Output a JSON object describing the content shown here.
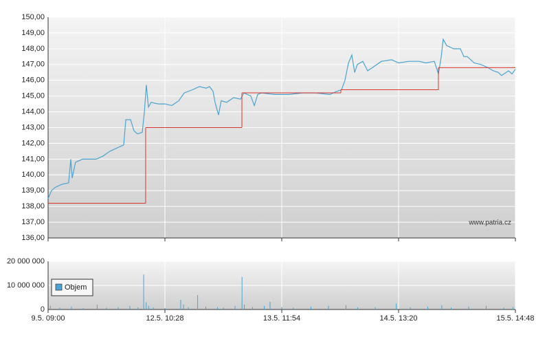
{
  "chart_data": [
    {
      "type": "line",
      "watermark": "www.patria.cz",
      "grid": true,
      "xlim": [
        0,
        4
      ],
      "ylim": [
        136,
        150
      ],
      "yticks": [
        {
          "value": 136,
          "label": "136,00"
        },
        {
          "value": 137,
          "label": "137,00"
        },
        {
          "value": 138,
          "label": "138,00"
        },
        {
          "value": 139,
          "label": "139,00"
        },
        {
          "value": 140,
          "label": "140,00"
        },
        {
          "value": 141,
          "label": "141,00"
        },
        {
          "value": 142,
          "label": "142,00"
        },
        {
          "value": 143,
          "label": "143,00"
        },
        {
          "value": 144,
          "label": "144,00"
        },
        {
          "value": 145,
          "label": "145,00"
        },
        {
          "value": 146,
          "label": "146,00"
        },
        {
          "value": 147,
          "label": "147,00"
        },
        {
          "value": 148,
          "label": "148,00"
        },
        {
          "value": 149,
          "label": "149,00"
        },
        {
          "value": 150,
          "label": "150,00"
        }
      ],
      "series": [
        {
          "color": "#4aa3d0",
          "style": "line",
          "x": [
            0,
            0.029,
            0.059,
            0.118,
            0.176,
            0.194,
            0.206,
            0.235,
            0.294,
            0.353,
            0.412,
            0.471,
            0.529,
            0.588,
            0.647,
            0.665,
            0.706,
            0.735,
            0.765,
            0.806,
            0.824,
            0.841,
            0.859,
            0.882,
            0.941,
            1.0,
            1.059,
            1.118,
            1.165,
            1.235,
            1.294,
            1.353,
            1.382,
            1.412,
            1.429,
            1.459,
            1.482,
            1.529,
            1.588,
            1.647,
            1.676,
            1.735,
            1.765,
            1.794,
            1.824,
            1.941,
            2.059,
            2.176,
            2.294,
            2.412,
            2.471,
            2.512,
            2.541,
            2.571,
            2.6,
            2.624,
            2.647,
            2.694,
            2.735,
            2.794,
            2.853,
            2.941,
            3.0,
            3.088,
            3.176,
            3.235,
            3.306,
            3.341,
            3.365,
            3.382,
            3.412,
            3.471,
            3.529,
            3.559,
            3.588,
            3.647,
            3.706,
            3.765,
            3.812,
            3.853,
            3.882,
            3.941,
            3.971,
            4.0
          ],
          "values": [
            138.5,
            139.0,
            139.2,
            139.4,
            139.5,
            141.0,
            139.8,
            140.8,
            141.0,
            141.0,
            141.0,
            141.2,
            141.5,
            141.7,
            141.9,
            143.5,
            143.5,
            142.8,
            142.6,
            142.7,
            144.0,
            145.7,
            144.3,
            144.6,
            144.5,
            144.5,
            144.4,
            144.7,
            145.2,
            145.4,
            145.6,
            145.5,
            145.6,
            145.3,
            144.6,
            143.8,
            144.7,
            144.6,
            144.9,
            144.8,
            145.2,
            145.0,
            144.4,
            145.1,
            145.2,
            145.1,
            145.1,
            145.2,
            145.2,
            145.1,
            145.3,
            145.4,
            146.0,
            147.1,
            147.6,
            146.5,
            147.0,
            147.2,
            146.6,
            146.9,
            147.2,
            147.3,
            147.1,
            147.2,
            147.2,
            147.1,
            147.2,
            146.4,
            147.5,
            148.6,
            148.2,
            148.0,
            148.0,
            147.5,
            147.5,
            147.1,
            147.0,
            146.8,
            146.6,
            146.5,
            146.3,
            146.6,
            146.4,
            146.7
          ]
        },
        {
          "color": "#d9352b",
          "style": "step",
          "x": [
            0,
            0.835,
            1.659,
            2.506,
            3.341
          ],
          "values": [
            138.2,
            143.0,
            145.2,
            145.4,
            146.8
          ]
        }
      ]
    },
    {
      "type": "bar",
      "grid": true,
      "legend": "top-left",
      "xlim": [
        0,
        4
      ],
      "xticks": [
        {
          "value": 0,
          "label": "9.5. 09:00"
        },
        {
          "value": 1,
          "label": "12.5. 10:28"
        },
        {
          "value": 2,
          "label": "13.5. 11:54"
        },
        {
          "value": 3,
          "label": "14.5. 13:20"
        },
        {
          "value": 4,
          "label": "15.5. 14:48"
        }
      ],
      "ylim": [
        0,
        20000000
      ],
      "yticks": [
        0,
        {
          "value": 10000000,
          "label": "10 000 000"
        },
        {
          "value": 20000000,
          "label": "20 000 000"
        }
      ],
      "series": [
        {
          "name": "Objem",
          "color": "#4aa3d0",
          "x": [
            0.02,
            0.1,
            0.2,
            0.3,
            0.42,
            0.5,
            0.6,
            0.7,
            0.77,
            0.818,
            0.84,
            0.86,
            0.9,
            1.0,
            1.135,
            1.16,
            1.2,
            1.28,
            1.35,
            1.45,
            1.5,
            1.6,
            1.66,
            1.68,
            1.75,
            1.85,
            1.9,
            2.0,
            2.1,
            2.25,
            2.4,
            2.55,
            2.65,
            2.8,
            2.98,
            3.1,
            3.25,
            3.37,
            3.45,
            3.6,
            3.75,
            3.9,
            3.98
          ],
          "values": [
            1500000,
            800000,
            1200000,
            600000,
            2000000,
            700000,
            1000000,
            1500000,
            900000,
            14500000,
            3000000,
            1500000,
            800000,
            600000,
            4000000,
            2000000,
            1000000,
            6000000,
            1200000,
            1000000,
            800000,
            1500000,
            13500000,
            2000000,
            1000000,
            1500000,
            3200000,
            1000000,
            800000,
            1200000,
            1500000,
            1800000,
            900000,
            1000000,
            2500000,
            1000000,
            1200000,
            1800000,
            800000,
            1200000,
            1500000,
            800000,
            1000000
          ]
        }
      ]
    }
  ]
}
